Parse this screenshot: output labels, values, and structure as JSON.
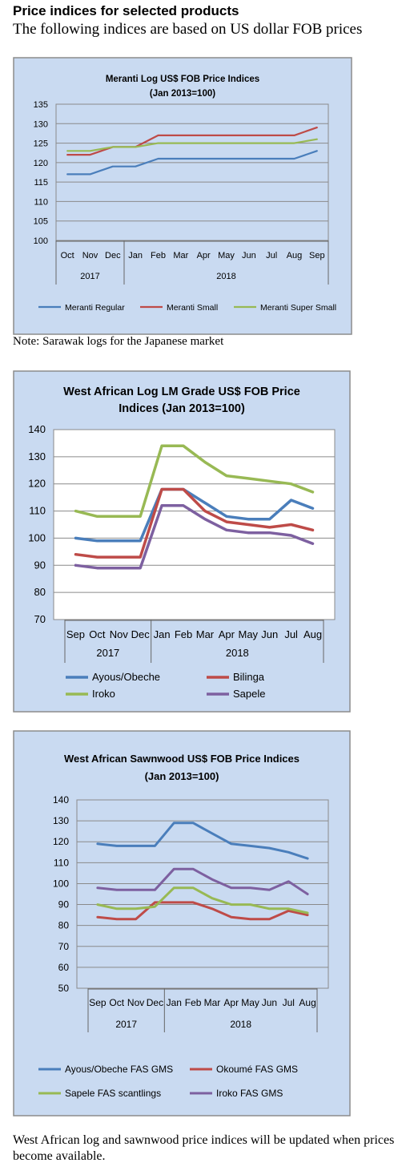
{
  "header": {
    "title": "Price indices for selected products",
    "subtitle": "The following indices are based on US dollar FOB prices"
  },
  "note": "Note: Sarawak logs for the Japanese market",
  "footer": "West African log and sawnwood price indices will be updated when prices become available.",
  "colors": {
    "panel_bg": "#c9daf1",
    "panel_border": "#8c8c8c",
    "blue": "#4a7ebb",
    "red": "#be4b48",
    "green": "#98b954",
    "purple": "#7d60a0"
  },
  "chart_data": [
    {
      "type": "line",
      "title": [
        "Meranti Log US$ FOB Price Indices",
        "(Jan 2013=100)"
      ],
      "categories": [
        "Oct",
        "Nov",
        "Dec",
        "Jan",
        "Feb",
        "Mar",
        "Apr",
        "May",
        "Jun",
        "Jul",
        "Aug",
        "Sep"
      ],
      "year_groups": [
        {
          "label": "2017",
          "count": 3
        },
        {
          "label": "2018",
          "count": 9
        }
      ],
      "ylim": [
        100,
        135
      ],
      "yticks": [
        "100",
        "105",
        "110",
        "115",
        "120",
        "125",
        "130",
        "135"
      ],
      "series": [
        {
          "name": "Meranti Regular",
          "color": "#4a7ebb",
          "values": [
            117,
            117,
            119,
            119,
            121,
            121,
            121,
            121,
            121,
            121,
            121,
            123
          ]
        },
        {
          "name": "Meranti Small",
          "color": "#be4b48",
          "values": [
            122,
            122,
            124,
            124,
            127,
            127,
            127,
            127,
            127,
            127,
            127,
            129
          ]
        },
        {
          "name": "Meranti Super Small",
          "color": "#98b954",
          "values": [
            123,
            123,
            124,
            124,
            125,
            125,
            125,
            125,
            125,
            125,
            125,
            126
          ]
        }
      ]
    },
    {
      "type": "line",
      "title": [
        "West African Log LM Grade US$ FOB Price",
        "Indices (Jan 2013=100)"
      ],
      "categories": [
        "Sep",
        "Oct",
        "Nov",
        "Dec",
        "Jan",
        "Feb",
        "Mar",
        "Apr",
        "May",
        "Jun",
        "Jul",
        "Aug"
      ],
      "year_groups": [
        {
          "label": "2017",
          "count": 4
        },
        {
          "label": "2018",
          "count": 8
        }
      ],
      "ylim": [
        70,
        140
      ],
      "yticks": [
        "70",
        "80",
        "90",
        "100",
        "110",
        "120",
        "130",
        "140"
      ],
      "series": [
        {
          "name": "Ayous/Obeche",
          "color": "#4a7ebb",
          "values": [
            100,
            99,
            99,
            99,
            118,
            118,
            113,
            108,
            107,
            107,
            114,
            111
          ]
        },
        {
          "name": "Bilinga",
          "color": "#be4b48",
          "values": [
            94,
            93,
            93,
            93,
            118,
            118,
            110,
            106,
            105,
            104,
            105,
            103
          ]
        },
        {
          "name": "Iroko",
          "color": "#98b954",
          "values": [
            110,
            108,
            108,
            108,
            134,
            134,
            128,
            123,
            122,
            121,
            120,
            117
          ]
        },
        {
          "name": "Sapele",
          "color": "#7d60a0",
          "values": [
            90,
            89,
            89,
            89,
            112,
            112,
            107,
            103,
            102,
            102,
            101,
            98
          ]
        }
      ]
    },
    {
      "type": "line",
      "title": [
        "West African Sawnwood US$ FOB Price Indices",
        "(Jan 2013=100)"
      ],
      "categories": [
        "Sep",
        "Oct",
        "Nov",
        "Dec",
        "Jan",
        "Feb",
        "Mar",
        "Apr",
        "May",
        "Jun",
        "Jul",
        "Aug"
      ],
      "year_groups": [
        {
          "label": "2017",
          "count": 4
        },
        {
          "label": "2018",
          "count": 8
        }
      ],
      "ylim": [
        50,
        140
      ],
      "yticks": [
        "50",
        "60",
        "70",
        "80",
        "90",
        "100",
        "110",
        "120",
        "130",
        "140"
      ],
      "series": [
        {
          "name": "Ayous/Obeche  FAS GMS",
          "color": "#4a7ebb",
          "values": [
            119,
            118,
            118,
            118,
            129,
            129,
            124,
            119,
            118,
            117,
            115,
            112
          ]
        },
        {
          "name": "Okoumé  FAS GMS",
          "color": "#be4b48",
          "values": [
            84,
            83,
            83,
            91,
            91,
            91,
            88,
            84,
            83,
            83,
            87,
            85
          ]
        },
        {
          "name": "Sapele FAS scantlings",
          "color": "#98b954",
          "values": [
            90,
            88,
            88,
            89,
            98,
            98,
            93,
            90,
            90,
            88,
            88,
            86
          ]
        },
        {
          "name": "Iroko FAS GMS",
          "color": "#7d60a0",
          "values": [
            98,
            97,
            97,
            97,
            107,
            107,
            102,
            98,
            98,
            97,
            101,
            95
          ]
        }
      ]
    }
  ]
}
